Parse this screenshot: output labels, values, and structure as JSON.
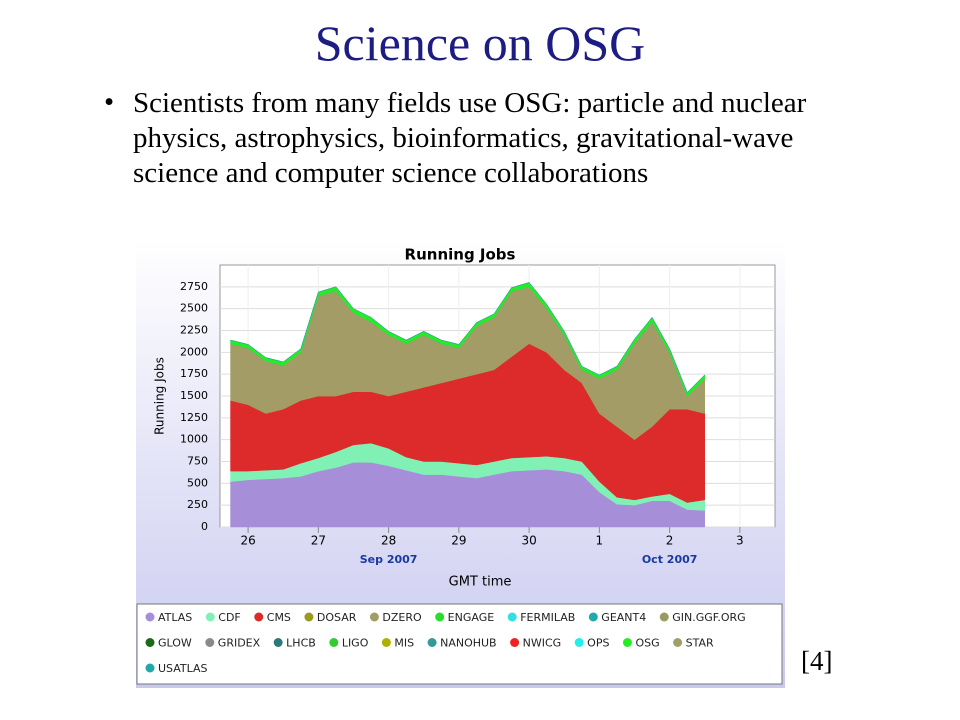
{
  "slide": {
    "title": "Science on OSG",
    "bullet": "Scientists from many fields use OSG: particle and nuclear physics, astrophysics, bioinformatics, gravitational-wave science and computer science collaborations",
    "citation": "[4]"
  },
  "chart_data": {
    "type": "stacked_area",
    "title": "Running Jobs",
    "y_label": "Running Jobs",
    "x_label": "GMT time",
    "x": [
      -0.25,
      0,
      0.25,
      0.5,
      0.75,
      1,
      1.25,
      1.5,
      1.75,
      2,
      2.25,
      2.5,
      2.75,
      3,
      3.25,
      3.5,
      3.75,
      4,
      4.25,
      4.5,
      4.75,
      5,
      5.25,
      5.5,
      5.75,
      6,
      6.25,
      6.5
    ],
    "xlim": [
      -0.4,
      7.5
    ],
    "xticks": [
      {
        "value": 0,
        "label": "26"
      },
      {
        "value": 1,
        "label": "27"
      },
      {
        "value": 2,
        "label": "28"
      },
      {
        "value": 3,
        "label": "29"
      },
      {
        "value": 4,
        "label": "30"
      },
      {
        "value": 5,
        "label": "1"
      },
      {
        "value": 6,
        "label": "2"
      },
      {
        "value": 7,
        "label": "3"
      }
    ],
    "month_labels": [
      {
        "value": 2,
        "label": "Sep 2007"
      },
      {
        "value": 6,
        "label": "Oct 2007"
      }
    ],
    "ylim": [
      0,
      3000
    ],
    "yticks": [
      0,
      250,
      500,
      750,
      1000,
      1250,
      1500,
      1750,
      2000,
      2250,
      2500,
      2750
    ],
    "grid": true,
    "series": [
      {
        "name": "ATLAS",
        "color": "#a68fd8",
        "values": [
          520,
          540,
          550,
          560,
          580,
          640,
          680,
          740,
          740,
          700,
          650,
          600,
          600,
          580,
          560,
          600,
          640,
          650,
          660,
          640,
          600,
          400,
          260,
          250,
          300,
          300,
          200,
          190
        ]
      },
      {
        "name": "CDF",
        "color": "#80f0b4",
        "values": [
          120,
          100,
          100,
          100,
          150,
          150,
          180,
          200,
          220,
          200,
          150,
          150,
          150,
          150,
          150,
          150,
          150,
          150,
          150,
          150,
          150,
          120,
          80,
          60,
          50,
          80,
          80,
          120
        ]
      },
      {
        "name": "CMS",
        "color": "#dd2a2a",
        "values": [
          810,
          760,
          650,
          690,
          720,
          710,
          640,
          610,
          590,
          600,
          750,
          850,
          900,
          970,
          1040,
          1050,
          1160,
          1300,
          1190,
          1010,
          900,
          780,
          810,
          690,
          800,
          970,
          1070,
          990
        ]
      },
      {
        "name": "DOSAR",
        "color": "#9c9a1c",
        "values": [
          0,
          0,
          0,
          0,
          0,
          0,
          0,
          0,
          0,
          0,
          0,
          0,
          0,
          0,
          0,
          0,
          0,
          0,
          0,
          0,
          0,
          0,
          0,
          0,
          0,
          0,
          0,
          0
        ]
      },
      {
        "name": "DZERO",
        "color": "#a39c66",
        "values": [
          650,
          650,
          600,
          500,
          550,
          1150,
          1200,
          900,
          800,
          700,
          550,
          600,
          450,
          350,
          550,
          600,
          750,
          650,
          500,
          400,
          150,
          400,
          650,
          1100,
          1200,
          650,
          150,
          400
        ]
      },
      {
        "name": "ENGAGE",
        "color": "#2add2a",
        "values": [
          0,
          0,
          0,
          0,
          0,
          0,
          0,
          0,
          0,
          0,
          0,
          0,
          0,
          0,
          0,
          0,
          0,
          0,
          0,
          0,
          0,
          0,
          0,
          0,
          0,
          0,
          0,
          0
        ]
      },
      {
        "name": "FERMILAB",
        "color": "#33e0e0",
        "values": [
          0,
          0,
          0,
          0,
          0,
          0,
          0,
          0,
          0,
          0,
          0,
          0,
          0,
          0,
          0,
          0,
          0,
          0,
          0,
          0,
          0,
          0,
          0,
          0,
          0,
          0,
          0,
          0
        ]
      },
      {
        "name": "GEANT4",
        "color": "#22aaaa",
        "values": [
          0,
          0,
          0,
          0,
          0,
          0,
          0,
          0,
          0,
          0,
          0,
          0,
          0,
          0,
          0,
          0,
          0,
          0,
          0,
          0,
          0,
          0,
          0,
          0,
          0,
          0,
          0,
          0
        ]
      },
      {
        "name": "GIN.GGF.ORG",
        "color": "#9a9a60",
        "values": [
          0,
          0,
          0,
          0,
          0,
          0,
          0,
          0,
          0,
          0,
          0,
          0,
          0,
          0,
          0,
          0,
          0,
          0,
          0,
          0,
          0,
          0,
          0,
          0,
          0,
          0,
          0,
          0
        ]
      },
      {
        "name": "GLOW",
        "color": "#1a6a1a",
        "values": [
          0,
          0,
          0,
          0,
          0,
          0,
          0,
          0,
          0,
          0,
          0,
          0,
          0,
          0,
          0,
          0,
          0,
          0,
          0,
          0,
          0,
          0,
          0,
          0,
          0,
          0,
          0,
          0
        ]
      },
      {
        "name": "GRIDEX",
        "color": "#8a8a8a",
        "values": [
          0,
          0,
          0,
          0,
          0,
          0,
          0,
          0,
          0,
          0,
          0,
          0,
          0,
          0,
          0,
          0,
          0,
          0,
          0,
          0,
          0,
          0,
          0,
          0,
          0,
          0,
          0,
          0
        ]
      },
      {
        "name": "LHCB",
        "color": "#2a7a7a",
        "values": [
          0,
          0,
          0,
          0,
          0,
          0,
          0,
          0,
          0,
          0,
          0,
          0,
          0,
          0,
          0,
          0,
          0,
          0,
          0,
          0,
          0,
          0,
          0,
          0,
          0,
          0,
          0,
          0
        ]
      },
      {
        "name": "LIGO",
        "color": "#33cc33",
        "values": [
          0,
          0,
          0,
          0,
          0,
          0,
          0,
          0,
          0,
          0,
          0,
          0,
          0,
          0,
          0,
          0,
          0,
          0,
          0,
          0,
          0,
          0,
          0,
          0,
          0,
          0,
          0,
          0
        ]
      },
      {
        "name": "MIS",
        "color": "#b0b000",
        "values": [
          0,
          0,
          0,
          0,
          0,
          0,
          0,
          0,
          0,
          0,
          0,
          0,
          0,
          0,
          0,
          0,
          0,
          0,
          0,
          0,
          0,
          0,
          0,
          0,
          0,
          0,
          0,
          0
        ]
      },
      {
        "name": "NANOHUB",
        "color": "#339999",
        "values": [
          0,
          0,
          0,
          0,
          0,
          0,
          0,
          0,
          0,
          0,
          0,
          0,
          0,
          0,
          0,
          0,
          0,
          0,
          0,
          0,
          0,
          0,
          0,
          0,
          0,
          0,
          0,
          0
        ]
      },
      {
        "name": "NWICG",
        "color": "#ee2222",
        "values": [
          0,
          0,
          0,
          0,
          0,
          0,
          0,
          0,
          0,
          0,
          0,
          0,
          0,
          0,
          0,
          0,
          0,
          0,
          0,
          0,
          0,
          0,
          0,
          0,
          0,
          0,
          0,
          0
        ]
      },
      {
        "name": "OPS",
        "color": "#22eeee",
        "values": [
          0,
          0,
          0,
          0,
          0,
          0,
          0,
          0,
          0,
          0,
          0,
          0,
          0,
          0,
          0,
          0,
          0,
          0,
          0,
          0,
          0,
          0,
          0,
          0,
          0,
          0,
          0,
          0
        ]
      },
      {
        "name": "OSG",
        "color": "#22ee22",
        "values": [
          40,
          40,
          40,
          40,
          40,
          40,
          50,
          50,
          50,
          40,
          40,
          40,
          40,
          40,
          40,
          40,
          40,
          50,
          50,
          40,
          40,
          40,
          40,
          50,
          50,
          40,
          40,
          40
        ]
      },
      {
        "name": "STAR",
        "color": "#a0a066",
        "values": [
          0,
          0,
          0,
          0,
          0,
          0,
          0,
          0,
          0,
          0,
          0,
          0,
          0,
          0,
          0,
          0,
          0,
          0,
          0,
          0,
          0,
          0,
          0,
          0,
          0,
          0,
          0,
          0
        ]
      },
      {
        "name": "USATLAS",
        "color": "#22a8a8",
        "values": [
          0,
          0,
          0,
          0,
          0,
          0,
          0,
          0,
          0,
          0,
          0,
          0,
          0,
          0,
          0,
          0,
          0,
          0,
          0,
          0,
          0,
          0,
          0,
          0,
          0,
          0,
          0,
          0
        ]
      }
    ]
  }
}
